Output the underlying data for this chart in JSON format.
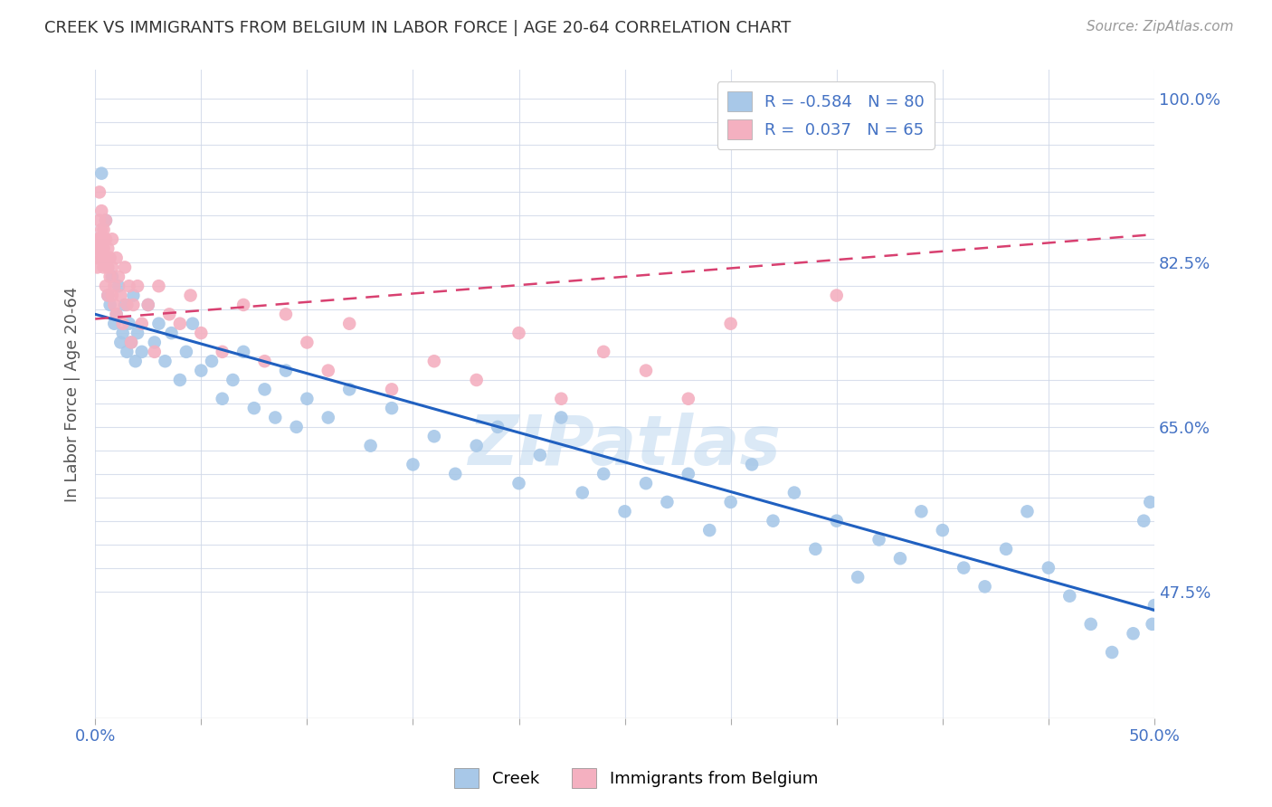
{
  "title": "CREEK VS IMMIGRANTS FROM BELGIUM IN LABOR FORCE | AGE 20-64 CORRELATION CHART",
  "source": "Source: ZipAtlas.com",
  "ylabel": "In Labor Force | Age 20-64",
  "xlim": [
    0.0,
    0.5
  ],
  "ylim": [
    0.34,
    1.03
  ],
  "creek_R": -0.584,
  "creek_N": 80,
  "belgium_R": 0.037,
  "belgium_N": 65,
  "creek_color": "#a8c8e8",
  "creek_line_color": "#2060c0",
  "belgium_color": "#f4b0c0",
  "belgium_line_color": "#d84070",
  "creek_line_x0": 0.0,
  "creek_line_y0": 0.77,
  "creek_line_x1": 0.5,
  "creek_line_y1": 0.455,
  "belgium_line_x0": 0.0,
  "belgium_line_y0": 0.765,
  "belgium_line_x1": 0.5,
  "belgium_line_y1": 0.855,
  "creek_x": [
    0.003,
    0.005,
    0.006,
    0.007,
    0.008,
    0.009,
    0.01,
    0.011,
    0.012,
    0.013,
    0.014,
    0.015,
    0.016,
    0.017,
    0.018,
    0.019,
    0.02,
    0.022,
    0.025,
    0.028,
    0.03,
    0.033,
    0.036,
    0.04,
    0.043,
    0.046,
    0.05,
    0.055,
    0.06,
    0.065,
    0.07,
    0.075,
    0.08,
    0.085,
    0.09,
    0.095,
    0.1,
    0.11,
    0.12,
    0.13,
    0.14,
    0.15,
    0.16,
    0.17,
    0.18,
    0.19,
    0.2,
    0.21,
    0.22,
    0.23,
    0.24,
    0.25,
    0.26,
    0.27,
    0.28,
    0.29,
    0.3,
    0.31,
    0.32,
    0.33,
    0.34,
    0.35,
    0.36,
    0.37,
    0.38,
    0.39,
    0.4,
    0.41,
    0.42,
    0.43,
    0.44,
    0.45,
    0.46,
    0.47,
    0.48,
    0.49,
    0.495,
    0.498,
    0.499,
    0.5
  ],
  "creek_y": [
    0.92,
    0.87,
    0.79,
    0.78,
    0.81,
    0.76,
    0.77,
    0.8,
    0.74,
    0.75,
    0.78,
    0.73,
    0.76,
    0.74,
    0.79,
    0.72,
    0.75,
    0.73,
    0.78,
    0.74,
    0.76,
    0.72,
    0.75,
    0.7,
    0.73,
    0.76,
    0.71,
    0.72,
    0.68,
    0.7,
    0.73,
    0.67,
    0.69,
    0.66,
    0.71,
    0.65,
    0.68,
    0.66,
    0.69,
    0.63,
    0.67,
    0.61,
    0.64,
    0.6,
    0.63,
    0.65,
    0.59,
    0.62,
    0.66,
    0.58,
    0.6,
    0.56,
    0.59,
    0.57,
    0.6,
    0.54,
    0.57,
    0.61,
    0.55,
    0.58,
    0.52,
    0.55,
    0.49,
    0.53,
    0.51,
    0.56,
    0.54,
    0.5,
    0.48,
    0.52,
    0.56,
    0.5,
    0.47,
    0.44,
    0.41,
    0.43,
    0.55,
    0.57,
    0.44,
    0.46
  ],
  "belgium_x": [
    0.001,
    0.001,
    0.001,
    0.001,
    0.002,
    0.002,
    0.002,
    0.002,
    0.003,
    0.003,
    0.003,
    0.003,
    0.004,
    0.004,
    0.004,
    0.005,
    0.005,
    0.005,
    0.005,
    0.006,
    0.006,
    0.006,
    0.007,
    0.007,
    0.008,
    0.008,
    0.008,
    0.009,
    0.009,
    0.01,
    0.01,
    0.011,
    0.012,
    0.013,
    0.014,
    0.015,
    0.016,
    0.017,
    0.018,
    0.02,
    0.022,
    0.025,
    0.028,
    0.03,
    0.035,
    0.04,
    0.045,
    0.05,
    0.06,
    0.07,
    0.08,
    0.09,
    0.1,
    0.11,
    0.12,
    0.14,
    0.16,
    0.18,
    0.2,
    0.22,
    0.24,
    0.26,
    0.28,
    0.3,
    0.35
  ],
  "belgium_y": [
    0.84,
    0.85,
    0.83,
    0.82,
    0.87,
    0.9,
    0.85,
    0.84,
    0.86,
    0.88,
    0.83,
    0.85,
    0.84,
    0.82,
    0.86,
    0.83,
    0.85,
    0.8,
    0.87,
    0.82,
    0.84,
    0.79,
    0.83,
    0.81,
    0.85,
    0.79,
    0.82,
    0.8,
    0.78,
    0.83,
    0.77,
    0.81,
    0.79,
    0.76,
    0.82,
    0.78,
    0.8,
    0.74,
    0.78,
    0.8,
    0.76,
    0.78,
    0.73,
    0.8,
    0.77,
    0.76,
    0.79,
    0.75,
    0.73,
    0.78,
    0.72,
    0.77,
    0.74,
    0.71,
    0.76,
    0.69,
    0.72,
    0.7,
    0.75,
    0.68,
    0.73,
    0.71,
    0.68,
    0.76,
    0.79
  ],
  "ytick_labeled": [
    0.475,
    0.65,
    0.825,
    1.0
  ],
  "ytick_labeled_strs": [
    "47.5%",
    "65.0%",
    "82.5%",
    "100.0%"
  ],
  "ytick_all": [
    0.475,
    0.5,
    0.525,
    0.55,
    0.575,
    0.6,
    0.625,
    0.65,
    0.675,
    0.7,
    0.725,
    0.75,
    0.775,
    0.8,
    0.825,
    0.85,
    0.875,
    0.9,
    0.925,
    0.95,
    0.975,
    1.0
  ],
  "xtick_positions": [
    0.0,
    0.05,
    0.1,
    0.15,
    0.2,
    0.25,
    0.3,
    0.35,
    0.4,
    0.45,
    0.5
  ],
  "xtick_labels_show": [
    "0.0%",
    "",
    "",
    "",
    "",
    "",
    "",
    "",
    "",
    "",
    "50.0%"
  ]
}
